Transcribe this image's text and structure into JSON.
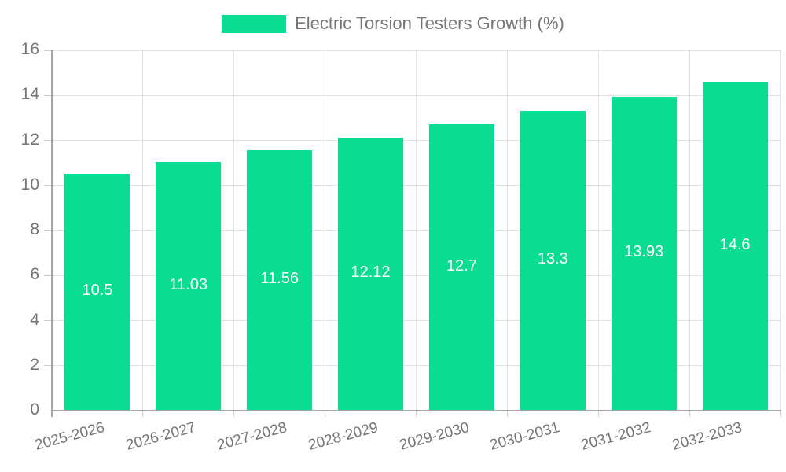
{
  "chart_data": {
    "type": "bar",
    "title": "Electric Torsion Testers Growth (%)",
    "legend": [
      "Electric Torsion Testers Growth (%)"
    ],
    "legend_position": "top-center",
    "categories": [
      "2025-2026",
      "2026-2027",
      "2027-2028",
      "2028-2029",
      "2029-2030",
      "2030-2031",
      "2031-2032",
      "2032-2033"
    ],
    "values": [
      10.5,
      11.03,
      11.56,
      12.12,
      12.7,
      13.3,
      13.93,
      14.6
    ],
    "value_labels": [
      "10.5",
      "11.03",
      "11.56",
      "12.12",
      "12.7",
      "13.3",
      "13.93",
      "14.6"
    ],
    "xlabel": "",
    "ylabel": "",
    "ylim": [
      0,
      16
    ],
    "yticks": [
      0,
      2,
      4,
      6,
      8,
      10,
      12,
      14,
      16
    ],
    "grid": true,
    "x_label_rotation": -15,
    "colors": {
      "bar": "#0adc92",
      "value_label": "#ffffff",
      "text": "#757575",
      "grid": "#e2e2e2",
      "axis": "#a6a6a6",
      "tick": "#cccccc",
      "background": "#ffffff"
    }
  }
}
